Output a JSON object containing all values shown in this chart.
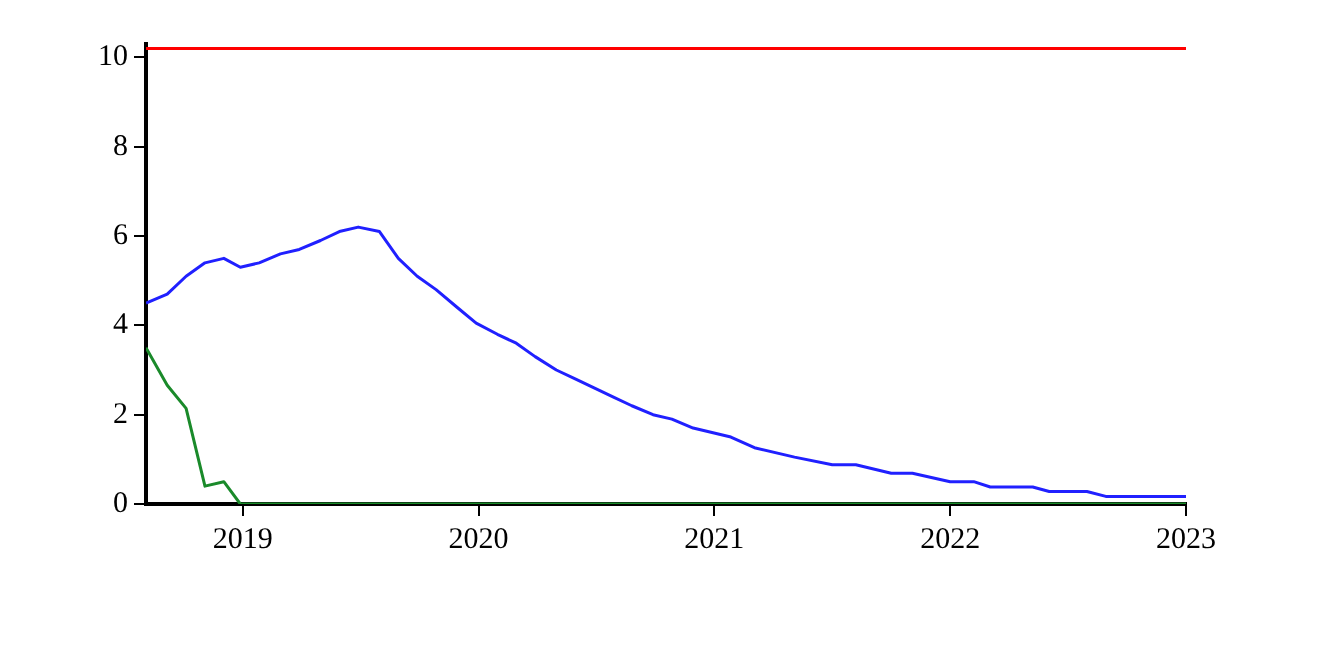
{
  "chart_data": {
    "type": "line",
    "xlim": [
      2018.59,
      2023
    ],
    "xticks": [
      2019,
      2020,
      2021,
      2022,
      2023
    ],
    "ylim": [
      0,
      10.3
    ],
    "yticks": [
      0,
      2,
      4,
      6,
      8,
      10
    ],
    "grid": false,
    "legend": false,
    "marker": "none",
    "line_style": "solid",
    "series": [
      {
        "color": "#ff0000",
        "x": [
          2018.59,
          2023
        ],
        "values": [
          10.2,
          10.2
        ]
      },
      {
        "color": "#2020ff",
        "x": [
          2018.59,
          2018.68,
          2018.76,
          2018.84,
          2018.92,
          2018.99,
          2019.07,
          2019.16,
          2019.24,
          2019.33,
          2019.41,
          2019.49,
          2019.58,
          2019.66,
          2019.74,
          2019.82,
          2019.91,
          2019.99,
          2020.08,
          2020.16,
          2020.24,
          2020.33,
          2020.41,
          2020.49,
          2020.57,
          2020.65,
          2020.74,
          2020.82,
          2020.91,
          2021.07,
          2021.17,
          2021.34,
          2021.5,
          2021.6,
          2021.75,
          2021.84,
          2022,
          2022.1,
          2022.17,
          2022.35,
          2022.42,
          2022.58,
          2022.66,
          2023
        ],
        "values": [
          4.5,
          4.7,
          5.1,
          5.4,
          5.5,
          5.3,
          5.4,
          5.6,
          5.7,
          5.9,
          6.1,
          6.2,
          6.1,
          5.5,
          5.1,
          4.8,
          4.4,
          4.05,
          3.8,
          3.6,
          3.3,
          3.0,
          2.8,
          2.6,
          2.4,
          2.2,
          2.0,
          1.9,
          1.7,
          1.5,
          1.26,
          1.05,
          0.88,
          0.88,
          0.69,
          0.69,
          0.5,
          0.5,
          0.38,
          0.38,
          0.28,
          0.28,
          0.17,
          0.17
        ]
      },
      {
        "color": "#1a8a2a",
        "x": [
          2018.59,
          2018.68,
          2018.76,
          2018.84,
          2018.92,
          2018.99,
          2023
        ],
        "values": [
          3.5,
          2.66,
          2.14,
          0.4,
          0.5,
          0,
          0
        ]
      }
    ]
  }
}
